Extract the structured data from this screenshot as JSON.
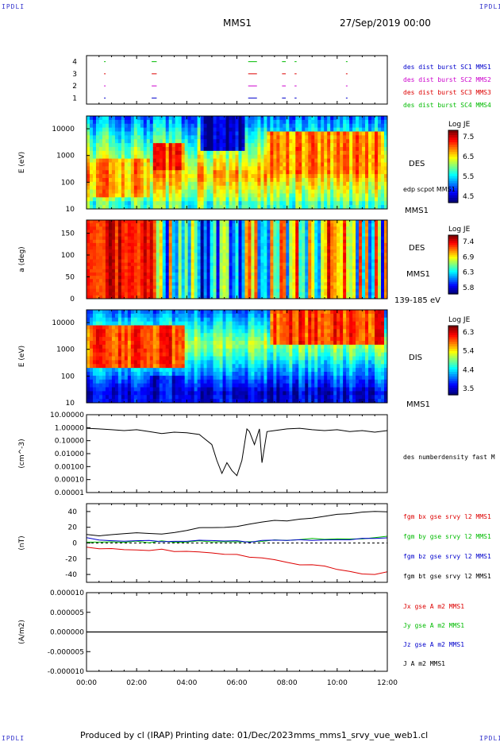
{
  "corner_labels": {
    "top_left": "IPDLI",
    "top_right": "IPDLI",
    "bottom_left": "IPDLI",
    "bottom_right": "IPDLI"
  },
  "header": {
    "spacecraft": "MMS1",
    "date_time": "27/Sep/2019 00:00"
  },
  "footer": {
    "produced_by": "Produced by cl (IRAP)",
    "printing_date": "Printing date: 01/Dec/2023",
    "file": "mms_mms1_srvy_vue_web1.cl"
  },
  "x_axis": {
    "ticks": [
      "00:00",
      "02:00",
      "04:00",
      "06:00",
      "08:00",
      "10:00",
      "12:00"
    ],
    "range_hours": [
      0,
      12
    ]
  },
  "colors": {
    "blue": "#0000cc",
    "magenta": "#cc00cc",
    "red": "#dd0000",
    "green": "#00bb00",
    "black": "#000000"
  },
  "chart_data": [
    {
      "type": "scatter",
      "ylabel": "",
      "yticks": [
        "4",
        "3",
        "2",
        "1"
      ],
      "ylim": [
        0.5,
        4.5
      ],
      "legend": [
        "des dist burst SC1 MMS1",
        "des dist burst SC2 MMS2",
        "des dist burst SC3 MMS3",
        "des dist burst SC4 MMS4"
      ],
      "legend_colors": [
        "#0000cc",
        "#cc00cc",
        "#dd0000",
        "#00bb00"
      ],
      "burst_intervals_hours": [
        [
          0.7,
          0.75
        ],
        [
          2.6,
          2.8
        ],
        [
          6.45,
          6.8
        ],
        [
          7.8,
          7.95
        ],
        [
          8.3,
          8.38
        ],
        [
          10.35,
          10.4
        ]
      ]
    },
    {
      "type": "heatmap",
      "ylabel": "E (eV)",
      "yscale": "log",
      "ylim": [
        10,
        30000
      ],
      "yticks": [
        "10000",
        "1000",
        "100",
        "10"
      ],
      "right_labels": [
        "DES",
        "edp scpot MMS1",
        "MMS1"
      ],
      "colorbar": {
        "title": "Log JE",
        "ticks": [
          "7.5",
          "6.5",
          "5.5",
          "4.5"
        ],
        "range": [
          4.5,
          7.5
        ]
      }
    },
    {
      "type": "heatmap",
      "ylabel": "a (deg)",
      "ylim": [
        0,
        180
      ],
      "yticks": [
        "150",
        "100",
        "50",
        "0"
      ],
      "right_labels": [
        "DES",
        "MMS1",
        "139-185 eV"
      ],
      "colorbar": {
        "title": "Log JE",
        "ticks": [
          "7.4",
          "6.9",
          "6.3",
          "5.8"
        ],
        "range": [
          5.8,
          7.4
        ]
      }
    },
    {
      "type": "heatmap",
      "ylabel": "E (eV)",
      "yscale": "log",
      "ylim": [
        10,
        30000
      ],
      "yticks": [
        "10000",
        "1000",
        "100",
        "10"
      ],
      "right_labels": [
        "DIS",
        "MMS1"
      ],
      "colorbar": {
        "title": "Log JE",
        "ticks": [
          "6.3",
          "5.4",
          "4.4",
          "3.5"
        ],
        "range": [
          3.5,
          6.3
        ]
      }
    },
    {
      "type": "line",
      "ylabel": "(cm^-3)",
      "yscale": "log",
      "ylim": [
        1e-05,
        10
      ],
      "yticks": [
        "10.00000",
        "1.00000",
        "0.10000",
        "0.01000",
        "0.00100",
        "0.00010",
        "0.00001"
      ],
      "series": [
        {
          "name": "des numberdensity fast M",
          "color": "#000000",
          "x": [
            0,
            0.5,
            1,
            1.5,
            2,
            2.5,
            3,
            3.5,
            4,
            4.5,
            5,
            5.2,
            5.4,
            5.6,
            5.8,
            6,
            6.2,
            6.4,
            6.5,
            6.7,
            6.9,
            7,
            7.2,
            7.5,
            8,
            8.5,
            9,
            9.5,
            10,
            10.5,
            11,
            11.5,
            12
          ],
          "y": [
            0.9,
            0.8,
            0.7,
            0.6,
            0.7,
            0.5,
            0.35,
            0.45,
            0.4,
            0.3,
            0.05,
            0.003,
            0.0003,
            0.002,
            0.0005,
            0.0002,
            0.003,
            0.8,
            0.5,
            0.05,
            0.8,
            0.002,
            0.5,
            0.6,
            0.8,
            0.9,
            0.7,
            0.6,
            0.7,
            0.5,
            0.6,
            0.45,
            0.6
          ]
        }
      ]
    },
    {
      "type": "line",
      "ylabel": "(nT)",
      "ylim": [
        -50,
        50
      ],
      "yticks": [
        "40",
        "20",
        "0",
        "-20",
        "-40"
      ],
      "x": [
        0,
        0.5,
        1,
        1.5,
        2,
        2.5,
        3,
        3.5,
        4,
        4.5,
        5,
        5.5,
        6,
        6.5,
        7,
        7.5,
        8,
        8.5,
        9,
        9.5,
        10,
        10.5,
        11,
        11.5,
        12
      ],
      "series": [
        {
          "name": "fgm bx gse srvy l2 MMS1",
          "color": "#dd0000",
          "values": [
            -6,
            -8,
            -8,
            -9,
            -9,
            -10,
            -8,
            -10,
            -11,
            -12,
            -13,
            -14,
            -15,
            -19,
            -20,
            -22,
            -24,
            -27,
            -28,
            -30,
            -33,
            -36,
            -39,
            -40,
            -37
          ]
        },
        {
          "name": "fgm by gse srvy l2 MMS1",
          "color": "#00bb00",
          "values": [
            2,
            1,
            1,
            1,
            2,
            1,
            2,
            1,
            2,
            2,
            2,
            2,
            1,
            2,
            3,
            3,
            4,
            4,
            5,
            5,
            5,
            6,
            6,
            7,
            8
          ]
        },
        {
          "name": "fgm bz gse srvy l2 MMS1",
          "color": "#0000cc",
          "values": [
            6,
            4,
            3,
            3,
            2,
            3,
            2,
            2,
            2,
            3,
            3,
            2,
            2,
            1,
            3,
            4,
            3,
            4,
            4,
            4,
            5,
            5,
            6,
            6,
            7
          ]
        },
        {
          "name": "fgm bt gse srvy l2 MMS1",
          "color": "#000000",
          "values": [
            10,
            10,
            11,
            12,
            13,
            12,
            12,
            14,
            16,
            19,
            20,
            20,
            21,
            24,
            26,
            28,
            29,
            31,
            32,
            34,
            36,
            38,
            40,
            41,
            39
          ]
        }
      ]
    },
    {
      "type": "line",
      "ylabel": "(A/m2)",
      "ylim": [
        -1e-05,
        1e-05
      ],
      "yticks": [
        "0.000010",
        "0.000005",
        "0.000000",
        "-0.000005",
        "-0.000010"
      ],
      "series": [
        {
          "name": "Jx gse A m2 MMS1",
          "color": "#dd0000"
        },
        {
          "name": "Jy gse A m2 MMS1",
          "color": "#00bb00"
        },
        {
          "name": "Jz gse A m2 MMS1",
          "color": "#0000cc"
        },
        {
          "name": "J A m2 MMS1",
          "color": "#000000"
        }
      ],
      "x": [
        0,
        12
      ],
      "values": [
        0,
        0
      ]
    }
  ]
}
